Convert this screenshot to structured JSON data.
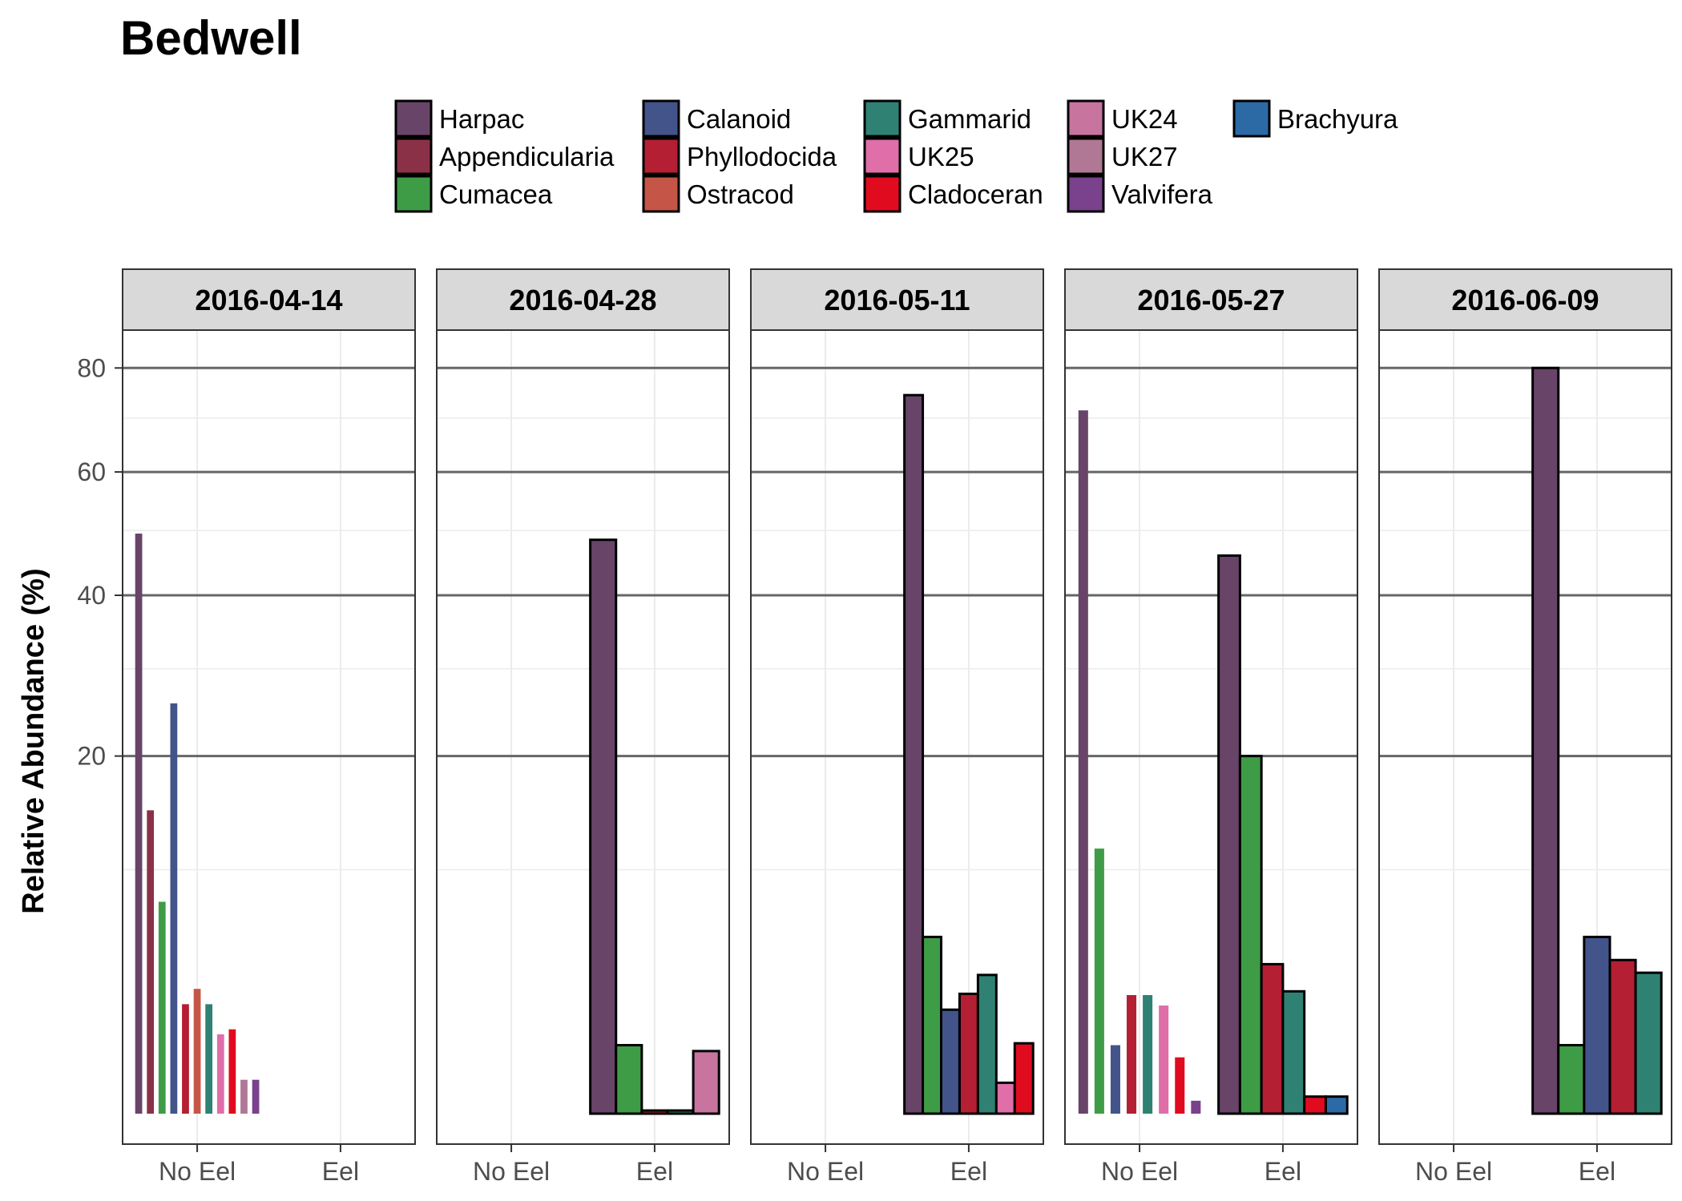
{
  "chart_data": {
    "type": "bar",
    "title": "Bedwell",
    "xlabel": "",
    "ylabel": "Relative Abundance (%)",
    "y_scale": "sqrt",
    "ylim": [
      0,
      88
    ],
    "y_ticks": [
      20,
      40,
      60,
      80
    ],
    "y_tick_labels": [
      "20",
      "40",
      "60",
      "80"
    ],
    "categories": [
      "No Eel",
      "Eel"
    ],
    "legend_position": "top",
    "legend": [
      {
        "name": "Harpac",
        "color": "#684468"
      },
      {
        "name": "Appendicularia",
        "color": "#8b3147"
      },
      {
        "name": "Cumacea",
        "color": "#3e9c47"
      },
      {
        "name": "Calanoid",
        "color": "#42548a"
      },
      {
        "name": "Phyllodocida",
        "color": "#b51f33"
      },
      {
        "name": "Ostracod",
        "color": "#c55546"
      },
      {
        "name": "Gammarid",
        "color": "#2f8273"
      },
      {
        "name": "UK25",
        "color": "#df6ea9"
      },
      {
        "name": "Cladoceran",
        "color": "#e10b20"
      },
      {
        "name": "UK24",
        "color": "#c7749f"
      },
      {
        "name": "UK27",
        "color": "#b07895"
      },
      {
        "name": "Valvifera",
        "color": "#7a418c"
      },
      {
        "name": "Brachyura",
        "color": "#2c6aa6"
      }
    ],
    "panels": [
      {
        "date": "2016-04-14",
        "groups": {
          "No Eel": [
            {
              "taxon": "Harpac",
              "value": 49.5
            },
            {
              "taxon": "Appendicularia",
              "value": 14.8
            },
            {
              "taxon": "Cumacea",
              "value": 7.8
            },
            {
              "taxon": "Calanoid",
              "value": 25.8
            },
            {
              "taxon": "Phyllodocida",
              "value": 2.6
            },
            {
              "taxon": "Ostracod",
              "value": 3.2
            },
            {
              "taxon": "Gammarid",
              "value": 2.6
            },
            {
              "taxon": "UK25",
              "value": 1.6
            },
            {
              "taxon": "Cladoceran",
              "value": 1.75
            },
            {
              "taxon": "UK27",
              "value": 0.55
            },
            {
              "taxon": "Valvifera",
              "value": 0.55
            }
          ],
          "Eel": []
        }
      },
      {
        "date": "2016-04-28",
        "groups": {
          "No Eel": [],
          "Eel": [
            {
              "taxon": "Harpac",
              "value": 48.5
            },
            {
              "taxon": "Cumacea",
              "value": 1.3
            },
            {
              "taxon": "Phyllodocida",
              "value": 0.15
            },
            {
              "taxon": "Gammarid",
              "value": 0.15
            },
            {
              "taxon": "UK24",
              "value": 1.15
            }
          ]
        }
      },
      {
        "date": "2016-05-11",
        "groups": {
          "No Eel": [],
          "Eel": [
            {
              "taxon": "Harpac",
              "value": 74.5
            },
            {
              "taxon": "Cumacea",
              "value": 5.7
            },
            {
              "taxon": "Calanoid",
              "value": 2.4
            },
            {
              "taxon": "Phyllodocida",
              "value": 3.0
            },
            {
              "taxon": "Gammarid",
              "value": 3.8
            },
            {
              "taxon": "UK25",
              "value": 0.5
            },
            {
              "taxon": "Cladoceran",
              "value": 1.35
            }
          ]
        }
      },
      {
        "date": "2016-05-27",
        "groups": {
          "No Eel": [
            {
              "taxon": "Harpac",
              "value": 71.5
            },
            {
              "taxon": "Cumacea",
              "value": 11.6
            },
            {
              "taxon": "Calanoid",
              "value": 1.3
            },
            {
              "taxon": "Phyllodocida",
              "value": 2.95
            },
            {
              "taxon": "Gammarid",
              "value": 2.95
            },
            {
              "taxon": "UK25",
              "value": 2.55
            },
            {
              "taxon": "Cladoceran",
              "value": 1.0
            },
            {
              "taxon": "Valvifera",
              "value": 0.25
            }
          ],
          "Eel": [
            {
              "taxon": "Harpac",
              "value": 46.0
            },
            {
              "taxon": "Cumacea",
              "value": 20.0
            },
            {
              "taxon": "Phyllodocida",
              "value": 4.3
            },
            {
              "taxon": "Gammarid",
              "value": 3.1
            },
            {
              "taxon": "Cladoceran",
              "value": 0.3
            },
            {
              "taxon": "Brachyura",
              "value": 0.3
            }
          ]
        }
      },
      {
        "date": "2016-06-09",
        "groups": {
          "No Eel": [],
          "Eel": [
            {
              "taxon": "Harpac",
              "value": 80.0
            },
            {
              "taxon": "Cumacea",
              "value": 1.3
            },
            {
              "taxon": "Calanoid",
              "value": 5.7
            },
            {
              "taxon": "Phyllodocida",
              "value": 4.5
            },
            {
              "taxon": "Gammarid",
              "value": 3.9
            }
          ]
        }
      }
    ]
  }
}
